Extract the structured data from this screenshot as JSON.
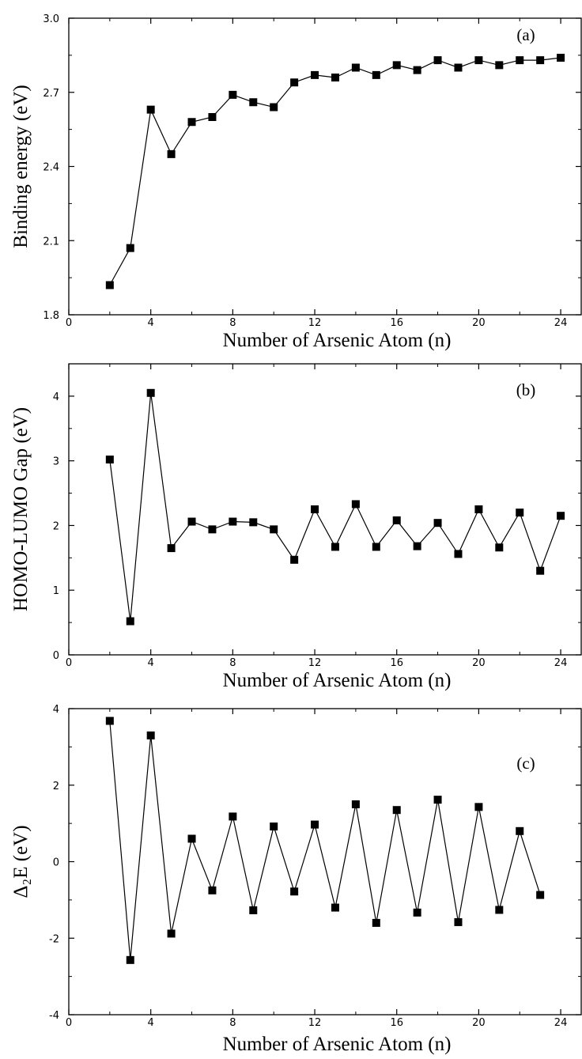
{
  "chart_data": [
    {
      "type": "line",
      "panel_label": "(a)",
      "xlabel": "Number of Arsenic Atom (n)",
      "ylabel": "Binding energy (eV)",
      "xlim": [
        0,
        25
      ],
      "ylim": [
        1.8,
        3.0
      ],
      "xticks": [
        0,
        4,
        8,
        12,
        16,
        20,
        24
      ],
      "xtick_labels": [
        "0",
        "4",
        "8",
        "12",
        "16",
        "20",
        "24"
      ],
      "yticks": [
        1.8,
        2.1,
        2.4,
        2.7,
        3.0
      ],
      "ytick_labels": [
        "1.8",
        "2.1",
        "2.4",
        "2.7",
        "3.0"
      ],
      "marker": "square",
      "series": [
        {
          "x": [
            2,
            3,
            4,
            5,
            6,
            7,
            8,
            9,
            10,
            11,
            12,
            13,
            14,
            15,
            16,
            17,
            18,
            19,
            20,
            21,
            22,
            23,
            24
          ],
          "y": [
            1.92,
            2.07,
            2.63,
            2.45,
            2.58,
            2.6,
            2.69,
            2.66,
            2.64,
            2.74,
            2.77,
            2.76,
            2.8,
            2.77,
            2.81,
            2.79,
            2.83,
            2.8,
            2.83,
            2.81,
            2.83,
            2.83,
            2.84
          ]
        }
      ]
    },
    {
      "type": "line",
      "panel_label": "(b)",
      "xlabel": "Number of Arsenic Atom (n)",
      "ylabel": "HOMO-LUMO Gap (eV)",
      "xlim": [
        0,
        25
      ],
      "ylim": [
        0,
        4.5
      ],
      "xticks": [
        0,
        4,
        8,
        12,
        16,
        20,
        24
      ],
      "xtick_labels": [
        "0",
        "4",
        "8",
        "12",
        "16",
        "20",
        "24"
      ],
      "yticks": [
        0,
        1,
        2,
        3,
        4
      ],
      "ytick_labels": [
        "0",
        "1",
        "2",
        "3",
        "4"
      ],
      "marker": "square",
      "series": [
        {
          "x": [
            2,
            3,
            4,
            5,
            6,
            7,
            8,
            9,
            10,
            11,
            12,
            13,
            14,
            15,
            16,
            17,
            18,
            19,
            20,
            21,
            22,
            23,
            24
          ],
          "y": [
            3.02,
            0.52,
            4.05,
            1.65,
            2.06,
            1.94,
            2.06,
            2.05,
            1.94,
            1.47,
            2.25,
            1.67,
            2.33,
            1.67,
            2.08,
            1.68,
            2.04,
            1.56,
            2.25,
            1.66,
            2.2,
            1.3,
            2.15
          ]
        }
      ]
    },
    {
      "type": "line",
      "panel_label": "(c)",
      "xlabel": "Number of Arsenic Atom (n)",
      "ylabel": "Δ₂E (eV)",
      "xlim": [
        0,
        25
      ],
      "ylim": [
        -4,
        4
      ],
      "xticks": [
        0,
        4,
        8,
        12,
        16,
        20,
        24
      ],
      "xtick_labels": [
        "0",
        "4",
        "8",
        "12",
        "16",
        "20",
        "24"
      ],
      "yticks": [
        -4,
        -2,
        0,
        2,
        4
      ],
      "ytick_labels": [
        "-4",
        "-2",
        "0",
        "2",
        "4"
      ],
      "marker": "square",
      "series": [
        {
          "x": [
            2,
            3,
            4,
            5,
            6,
            7,
            8,
            9,
            10,
            11,
            12,
            13,
            14,
            15,
            16,
            17,
            18,
            19,
            20,
            21,
            22,
            23
          ],
          "y": [
            3.68,
            -2.57,
            3.3,
            -1.88,
            0.6,
            -0.75,
            1.18,
            -1.27,
            0.92,
            -0.78,
            0.97,
            -1.2,
            1.5,
            -1.6,
            1.35,
            -1.33,
            1.62,
            -1.58,
            1.43,
            -1.26,
            0.8,
            -0.87
          ]
        }
      ]
    }
  ]
}
